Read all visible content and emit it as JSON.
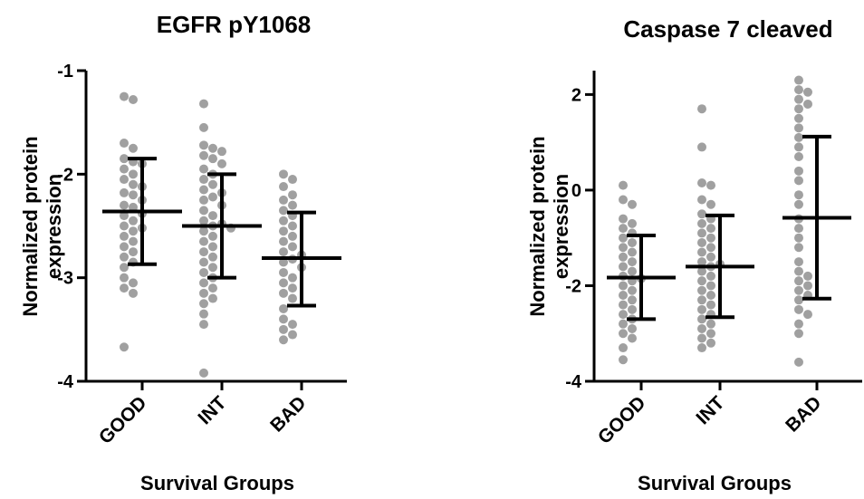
{
  "chart_data": [
    {
      "type": "scatter",
      "title": "EGFR pY1068",
      "xlabel": "Survival Groups",
      "ylabel": "Normalized protein expression",
      "ylabel_lines": [
        "Normalized protein",
        "expression"
      ],
      "ylim": [
        -4,
        -1
      ],
      "yticks": [
        -1,
        -2,
        -3,
        -4
      ],
      "ytick_labels": [
        "-1",
        "-2",
        "-3",
        "-4"
      ],
      "categories": [
        "GOOD",
        "INT",
        "BAD"
      ],
      "grid": false,
      "colors": {
        "points": "#a0a0a0",
        "bars": "#000000"
      },
      "summary": [
        {
          "category": "GOOD",
          "mean": -2.36,
          "sd_low": -2.87,
          "sd_high": -1.85
        },
        {
          "category": "INT",
          "mean": -2.5,
          "sd_low": -3.0,
          "sd_high": -2.0
        },
        {
          "category": "BAD",
          "mean": -2.81,
          "sd_low": -3.27,
          "sd_high": -2.37
        }
      ],
      "points": [
        {
          "category": "GOOD",
          "values": [
            -1.25,
            -1.28,
            -1.7,
            -1.75,
            -1.85,
            -1.88,
            -1.9,
            -1.95,
            -2.0,
            -2.05,
            -2.1,
            -2.12,
            -2.18,
            -2.2,
            -2.25,
            -2.3,
            -2.32,
            -2.38,
            -2.4,
            -2.45,
            -2.5,
            -2.52,
            -2.55,
            -2.6,
            -2.65,
            -2.7,
            -2.75,
            -2.8,
            -2.85,
            -2.9,
            -3.0,
            -3.05,
            -3.1,
            -3.15,
            -3.67
          ]
        },
        {
          "category": "INT",
          "values": [
            -1.32,
            -1.55,
            -1.72,
            -1.75,
            -1.78,
            -1.82,
            -1.85,
            -1.9,
            -1.95,
            -2.0,
            -2.05,
            -2.1,
            -2.15,
            -2.18,
            -2.22,
            -2.25,
            -2.3,
            -2.35,
            -2.4,
            -2.45,
            -2.48,
            -2.5,
            -2.52,
            -2.55,
            -2.6,
            -2.65,
            -2.7,
            -2.75,
            -2.8,
            -2.85,
            -2.9,
            -2.95,
            -3.0,
            -3.05,
            -3.1,
            -3.15,
            -3.2,
            -3.25,
            -3.35,
            -3.45,
            -3.92
          ]
        },
        {
          "category": "BAD",
          "values": [
            -2.0,
            -2.05,
            -2.12,
            -2.2,
            -2.25,
            -2.3,
            -2.35,
            -2.4,
            -2.45,
            -2.5,
            -2.55,
            -2.6,
            -2.65,
            -2.7,
            -2.75,
            -2.78,
            -2.82,
            -2.85,
            -2.9,
            -2.95,
            -3.0,
            -3.05,
            -3.1,
            -3.15,
            -3.2,
            -3.3,
            -3.4,
            -3.45,
            -3.5,
            -3.55,
            -3.6
          ]
        }
      ]
    },
    {
      "type": "scatter",
      "title": "Caspase 7 cleaved",
      "xlabel": "Survival Groups",
      "ylabel": "Normalized protein expression",
      "ylabel_lines": [
        "Normalized protein",
        "expression"
      ],
      "ylim": [
        -4,
        2.5
      ],
      "yticks": [
        2,
        0,
        -2,
        -4
      ],
      "ytick_labels": [
        "2",
        "0",
        "-2",
        "-4"
      ],
      "categories": [
        "GOOD",
        "INT",
        "BAD"
      ],
      "grid": false,
      "colors": {
        "points": "#a0a0a0",
        "bars": "#000000"
      },
      "summary": [
        {
          "category": "GOOD",
          "mean": -1.83,
          "sd_low": -2.7,
          "sd_high": -0.95
        },
        {
          "category": "INT",
          "mean": -1.6,
          "sd_low": -2.66,
          "sd_high": -0.53
        },
        {
          "category": "BAD",
          "mean": -0.58,
          "sd_low": -2.27,
          "sd_high": 1.12
        }
      ],
      "points": [
        {
          "category": "GOOD",
          "values": [
            0.1,
            -0.2,
            -0.3,
            -0.6,
            -0.7,
            -0.8,
            -0.9,
            -1.0,
            -1.1,
            -1.2,
            -1.3,
            -1.4,
            -1.5,
            -1.6,
            -1.7,
            -1.8,
            -1.85,
            -1.9,
            -2.0,
            -2.1,
            -2.2,
            -2.3,
            -2.4,
            -2.5,
            -2.6,
            -2.7,
            -2.8,
            -2.9,
            -3.0,
            -3.1,
            -3.3,
            -3.55
          ]
        },
        {
          "category": "INT",
          "values": [
            1.7,
            0.9,
            0.15,
            0.1,
            -0.2,
            -0.3,
            -0.5,
            -0.6,
            -0.7,
            -0.8,
            -0.9,
            -1.0,
            -1.1,
            -1.2,
            -1.3,
            -1.4,
            -1.5,
            -1.55,
            -1.6,
            -1.7,
            -1.8,
            -1.9,
            -2.0,
            -2.1,
            -2.2,
            -2.3,
            -2.4,
            -2.5,
            -2.6,
            -2.7,
            -2.8,
            -2.9,
            -3.0,
            -3.1,
            -3.2,
            -3.3
          ]
        },
        {
          "category": "BAD",
          "values": [
            2.3,
            2.1,
            2.05,
            1.9,
            1.8,
            1.7,
            1.5,
            1.3,
            1.1,
            0.9,
            0.7,
            0.4,
            0.2,
            -0.1,
            -0.3,
            -0.6,
            -0.8,
            -1.0,
            -1.2,
            -1.5,
            -1.7,
            -1.8,
            -1.9,
            -2.0,
            -2.1,
            -2.2,
            -2.3,
            -2.5,
            -2.6,
            -2.8,
            -3.0,
            -3.6
          ]
        }
      ]
    }
  ]
}
